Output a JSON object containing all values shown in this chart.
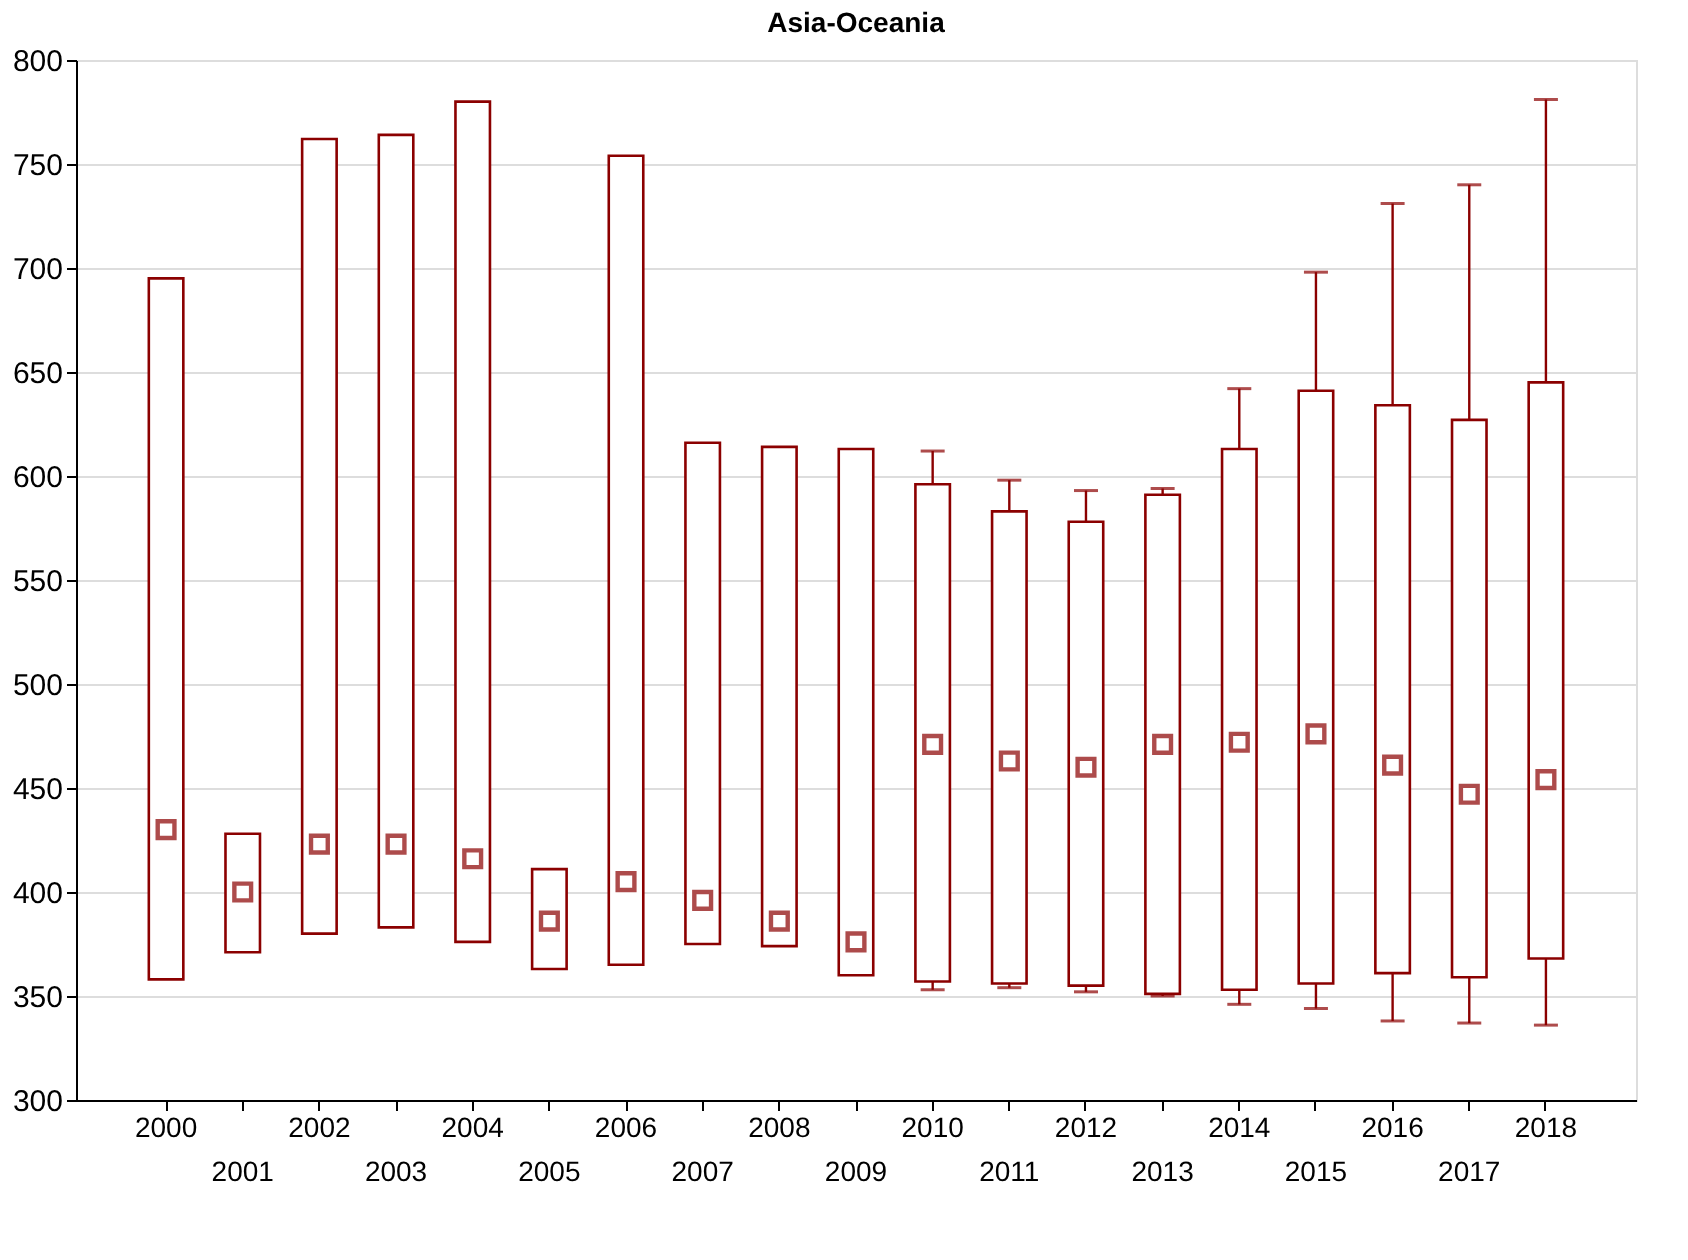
{
  "chart_data": {
    "type": "box",
    "title": "Asia-Oceania",
    "categories": [
      "2000",
      "2001",
      "2002",
      "2003",
      "2004",
      "2005",
      "2006",
      "2007",
      "2008",
      "2009",
      "2010",
      "2011",
      "2012",
      "2013",
      "2014",
      "2015",
      "2016",
      "2017",
      "2018"
    ],
    "color": "#8b0000",
    "marker": "square",
    "grid": "y",
    "ylim": [
      300,
      800
    ],
    "yticks": [
      300,
      350,
      400,
      450,
      500,
      550,
      600,
      650,
      700,
      750,
      800
    ],
    "boxes": [
      {
        "low": 358,
        "q1": 358,
        "median": 430,
        "q3": 695,
        "high": 695
      },
      {
        "low": 371,
        "q1": 371,
        "median": 400,
        "q3": 428,
        "high": 428
      },
      {
        "low": 380,
        "q1": 380,
        "median": 423,
        "q3": 762,
        "high": 762
      },
      {
        "low": 383,
        "q1": 383,
        "median": 423,
        "q3": 764,
        "high": 764
      },
      {
        "low": 376,
        "q1": 376,
        "median": 416,
        "q3": 780,
        "high": 780
      },
      {
        "low": 363,
        "q1": 363,
        "median": 386,
        "q3": 411,
        "high": 411
      },
      {
        "low": 365,
        "q1": 365,
        "median": 405,
        "q3": 754,
        "high": 754
      },
      {
        "low": 375,
        "q1": 375,
        "median": 396,
        "q3": 616,
        "high": 616
      },
      {
        "low": 374,
        "q1": 374,
        "median": 386,
        "q3": 614,
        "high": 614
      },
      {
        "low": 360,
        "q1": 360,
        "median": 376,
        "q3": 613,
        "high": 613
      },
      {
        "low": 353,
        "q1": 357,
        "median": 471,
        "q3": 596,
        "high": 612
      },
      {
        "low": 354,
        "q1": 356,
        "median": 463,
        "q3": 583,
        "high": 598
      },
      {
        "low": 352,
        "q1": 355,
        "median": 460,
        "q3": 578,
        "high": 593
      },
      {
        "low": 350,
        "q1": 351,
        "median": 471,
        "q3": 591,
        "high": 594
      },
      {
        "low": 346,
        "q1": 353,
        "median": 472,
        "q3": 613,
        "high": 642
      },
      {
        "low": 344,
        "q1": 356,
        "median": 476,
        "q3": 641,
        "high": 698
      },
      {
        "low": 338,
        "q1": 361,
        "median": 461,
        "q3": 634,
        "high": 731
      },
      {
        "low": 337,
        "q1": 359,
        "median": 447,
        "q3": 627,
        "high": 740
      },
      {
        "low": 336,
        "q1": 368,
        "median": 454,
        "q3": 645,
        "high": 781
      }
    ]
  }
}
